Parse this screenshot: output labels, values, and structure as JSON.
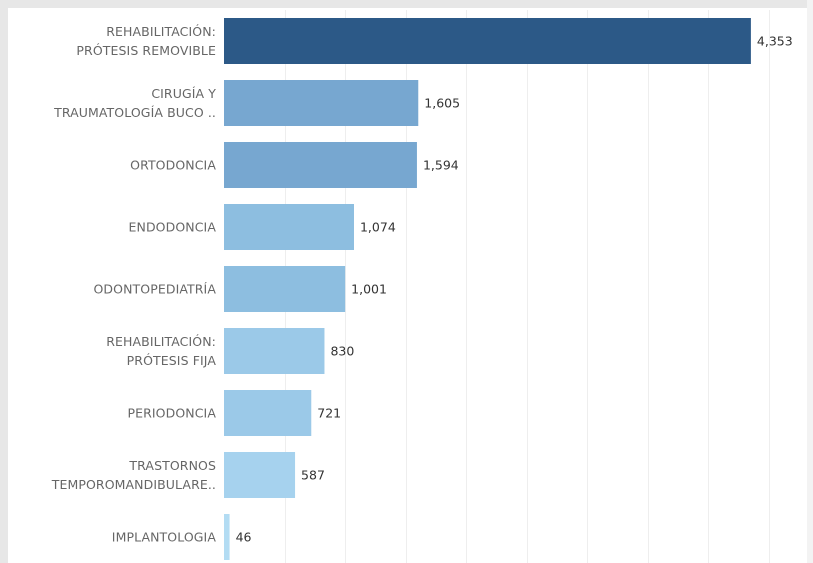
{
  "chart_data": {
    "type": "bar",
    "orientation": "horizontal",
    "categories": [
      [
        "REHABILITACIÓN:",
        "PRÓTESIS REMOVIBLE"
      ],
      [
        "CIRUGÍA Y",
        "TRAUMATOLOGÍA BUCO .."
      ],
      [
        "ORTODONCIA"
      ],
      [
        "ENDODONCIA"
      ],
      [
        "ODONTOPEDIATRÍA"
      ],
      [
        "REHABILITACIÓN:",
        "PRÓTESIS FIJA"
      ],
      [
        "PERIODONCIA"
      ],
      [
        "TRASTORNOS",
        "TEMPOROMANDIBULARE.."
      ],
      [
        "IMPLANTOLOGIA"
      ]
    ],
    "values": [
      4353,
      1605,
      1594,
      1074,
      1001,
      830,
      721,
      587,
      46
    ],
    "value_labels": [
      "4,353",
      "1,605",
      "1,594",
      "1,074",
      "1,001",
      "830",
      "721",
      "587",
      "46"
    ],
    "bar_colors": [
      "#2c5987",
      "#77a7d0",
      "#77a7d0",
      "#8dbee0",
      "#8dbee0",
      "#9bc9e8",
      "#9bc9e8",
      "#a6d2ee",
      "#b3dcf3"
    ],
    "xlim": [
      0,
      4800
    ],
    "grid": true,
    "gridline_color": "#eeeeee"
  },
  "colors": {
    "frame_strip": "#e7e7e7",
    "category_text": "#666666",
    "value_text": "#333333"
  }
}
